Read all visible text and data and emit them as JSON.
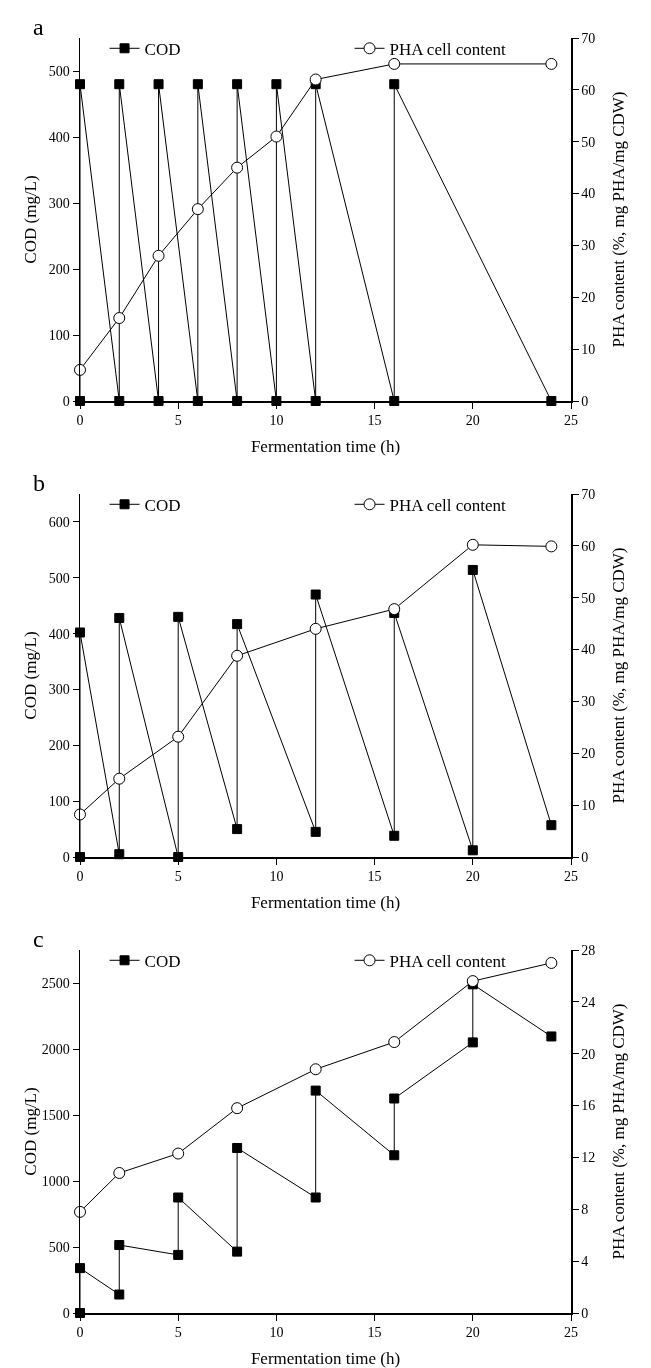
{
  "chart_data": [
    {
      "type": "line",
      "title": "a",
      "xlabel": "Fermentation time (h)",
      "ylabel": "COD (mg/L)",
      "y2label": "PHA content (%, mg PHA/mg CDW)",
      "xlim": [
        0,
        25
      ],
      "xticks": [
        0,
        5,
        10,
        15,
        20,
        25
      ],
      "ylim": [
        0,
        550
      ],
      "yticks": [
        0,
        100,
        200,
        300,
        400,
        500
      ],
      "y2lim": [
        0,
        70
      ],
      "y2ticks": [
        0,
        10,
        20,
        30,
        40,
        50,
        60,
        70
      ],
      "grid": false,
      "legend": "top",
      "series": [
        {
          "name": "COD",
          "color": "#000000",
          "marker": "square",
          "x": [
            0,
            0,
            2,
            2,
            4,
            4,
            6,
            6,
            8,
            8,
            10,
            10,
            12,
            12,
            16,
            16,
            24
          ],
          "values": [
            0,
            480,
            0,
            480,
            0,
            480,
            0,
            480,
            0,
            480,
            0,
            480,
            0,
            480,
            0,
            480,
            0
          ]
        },
        {
          "name": "PHA cell content",
          "color": "#000000",
          "marker": "circle",
          "axis": "y2",
          "x": [
            0,
            2,
            4,
            6,
            8,
            10,
            12,
            16,
            24
          ],
          "values": [
            6,
            16,
            28,
            37,
            45,
            51,
            62,
            65,
            65
          ]
        }
      ]
    },
    {
      "type": "line",
      "title": "b",
      "xlabel": "Fermentation time (h)",
      "ylabel": "COD (mg/L)",
      "y2label": "PHA content (%, mg PHA/mg CDW)",
      "xlim": [
        0,
        25
      ],
      "xticks": [
        0,
        5,
        10,
        15,
        20,
        25
      ],
      "ylim": [
        0,
        650
      ],
      "yticks": [
        0,
        100,
        200,
        300,
        400,
        500,
        600
      ],
      "y2lim": [
        0,
        70
      ],
      "y2ticks": [
        0,
        10,
        20,
        30,
        40,
        50,
        60,
        70
      ],
      "grid": false,
      "legend": "top",
      "series": [
        {
          "name": "COD",
          "color": "#000000",
          "marker": "square",
          "x": [
            0,
            0,
            2,
            2,
            5,
            5,
            8,
            8,
            12,
            12,
            16,
            16,
            20,
            20,
            24
          ],
          "values": [
            0,
            402,
            5,
            428,
            0,
            430,
            50,
            417,
            45,
            470,
            38,
            437,
            12,
            514,
            57
          ]
        },
        {
          "name": "PHA cell content",
          "color": "#000000",
          "marker": "circle",
          "axis": "y2",
          "x": [
            0,
            2,
            5,
            8,
            12,
            16,
            20,
            24
          ],
          "values": [
            8.2,
            15.1,
            23.2,
            38.8,
            44,
            47.8,
            60.2,
            59.9
          ]
        }
      ]
    },
    {
      "type": "line",
      "title": "c",
      "xlabel": "Fermentation time (h)",
      "ylabel": "COD (mg/L)",
      "y2label": "PHA content (%, mg PHA/mg CDW)",
      "xlim": [
        0,
        25
      ],
      "xticks": [
        0,
        5,
        10,
        15,
        20,
        25
      ],
      "ylim": [
        0,
        2750
      ],
      "yticks": [
        0,
        500,
        1000,
        1500,
        2000,
        2500
      ],
      "y2lim": [
        0,
        28
      ],
      "y2ticks": [
        0,
        4,
        8,
        12,
        16,
        20,
        24,
        28
      ],
      "grid": false,
      "legend": "top",
      "series": [
        {
          "name": "COD",
          "color": "#000000",
          "marker": "square",
          "x": [
            0,
            0,
            2,
            2,
            5,
            5,
            8,
            8,
            12,
            12,
            16,
            16,
            20,
            20,
            24
          ],
          "values": [
            0,
            340,
            140,
            515,
            440,
            875,
            465,
            1250,
            875,
            1685,
            1195,
            1625,
            2050,
            2490,
            2095
          ]
        },
        {
          "name": "PHA cell content",
          "color": "#000000",
          "marker": "circle",
          "axis": "y2",
          "x": [
            0,
            2,
            5,
            8,
            12,
            16,
            20,
            24
          ],
          "values": [
            7.8,
            10.8,
            12.3,
            15.8,
            18.8,
            20.9,
            25.6,
            27
          ]
        }
      ]
    }
  ]
}
